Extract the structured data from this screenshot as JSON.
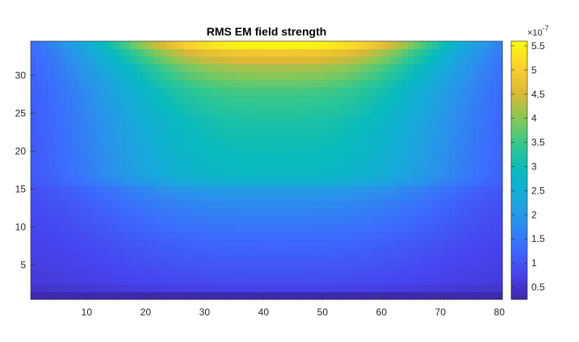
{
  "chart_data": {
    "type": "heatmap",
    "title": "RMS EM field strength",
    "xlabel": "",
    "ylabel": "",
    "xlim": [
      1,
      80
    ],
    "ylim": [
      1,
      34
    ],
    "x_ticks": [
      10,
      20,
      30,
      40,
      50,
      60,
      70,
      80
    ],
    "y_ticks": [
      5,
      10,
      15,
      20,
      25,
      30
    ],
    "colormap": "parula",
    "colorbar": {
      "range": [
        0.25,
        5.6
      ],
      "ticks": [
        "0.5",
        "1",
        "1.5",
        "2",
        "2.5",
        "3",
        "3.5",
        "4",
        "4.5",
        "5",
        "5.5"
      ],
      "tick_values": [
        0.5,
        1,
        1.5,
        2,
        2.5,
        3,
        3.5,
        4,
        4.5,
        5,
        5.5
      ],
      "exponent_base": "×10",
      "exponent": "-7",
      "placement": "right"
    },
    "grid": false,
    "field_profile": {
      "rows": [
        1,
        2,
        3,
        5,
        8,
        10,
        13,
        15,
        16,
        17,
        20,
        24,
        28,
        31,
        33,
        34
      ],
      "center_values": [
        0.3,
        0.75,
        0.9,
        1.05,
        1.25,
        1.45,
        1.75,
        2.1,
        2.55,
        2.85,
        3.0,
        3.2,
        3.6,
        4.2,
        4.9,
        5.5
      ],
      "edge_values": [
        0.3,
        0.5,
        0.6,
        0.65,
        0.7,
        0.75,
        0.8,
        0.85,
        0.9,
        0.9,
        0.9,
        0.9,
        0.9,
        0.9,
        0.9,
        0.9
      ]
    }
  }
}
